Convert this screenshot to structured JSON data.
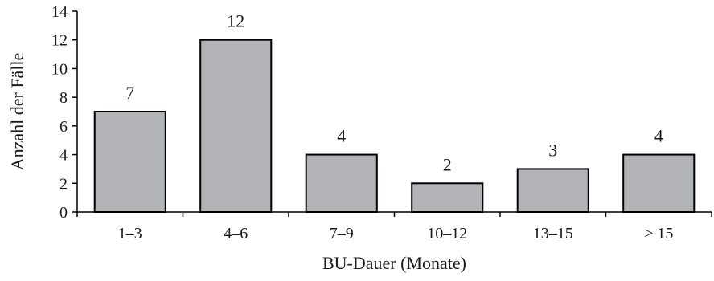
{
  "chart_data": {
    "type": "bar",
    "categories": [
      "1–3",
      "4–6",
      "7–9",
      "10–12",
      "13–15",
      "> 15"
    ],
    "values": [
      7,
      12,
      4,
      2,
      3,
      4
    ],
    "data_labels": [
      "7",
      "12",
      "4",
      "2",
      "3",
      "4"
    ],
    "xlabel": "BU-Dauer (Monate)",
    "ylabel": "Anzahl der Fälle",
    "ylim": [
      0,
      14
    ],
    "yticks": [
      0,
      2,
      4,
      6,
      8,
      10,
      12,
      14
    ],
    "ytick_labels": [
      "0",
      "2",
      "4",
      "6",
      "8",
      "10",
      "12",
      "14"
    ],
    "grid": false,
    "colors": {
      "bar_fill": "#b1b3b6",
      "bar_stroke": "#000000",
      "axis": "#000000"
    }
  }
}
